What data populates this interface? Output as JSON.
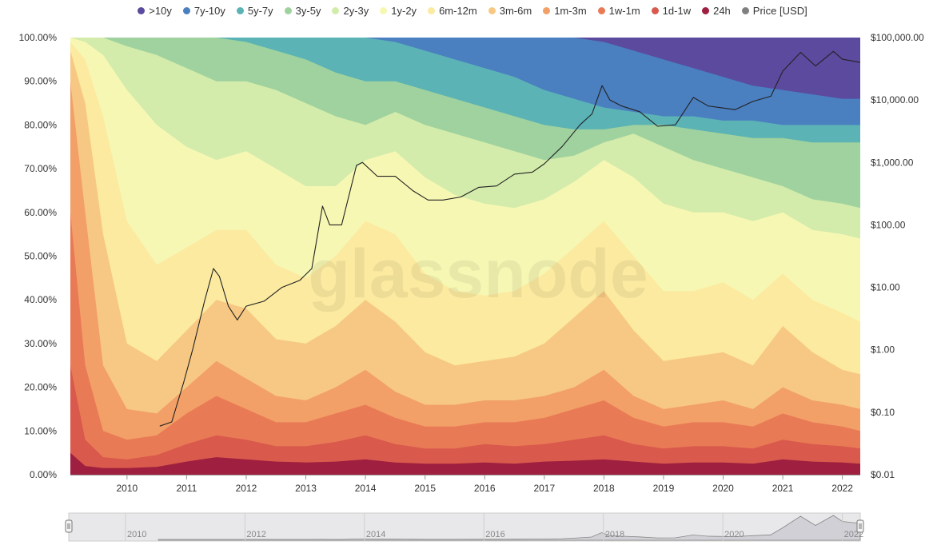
{
  "watermark": "glassnode",
  "chart_data": {
    "type": "area",
    "stacked": true,
    "y_left": {
      "ticks": [
        "0.00%",
        "10.00%",
        "20.00%",
        "30.00%",
        "40.00%",
        "50.00%",
        "60.00%",
        "70.00%",
        "80.00%",
        "90.00%",
        "100.00%"
      ],
      "range": [
        0,
        100
      ]
    },
    "y_right": {
      "ticks": [
        "$0.01",
        "$0.10",
        "$1.00",
        "$10.00",
        "$100.00",
        "$1,000.00",
        "$10,000.00",
        "$100,000.00"
      ],
      "scale": "log",
      "range": [
        0.01,
        100000
      ]
    },
    "x": {
      "range": [
        2009.05,
        2022.3
      ],
      "ticks": [
        "2010",
        "2011",
        "2012",
        "2013",
        "2014",
        "2015",
        "2016",
        "2017",
        "2018",
        "2019",
        "2020",
        "2021",
        "2022"
      ],
      "tick_values": [
        2010,
        2011,
        2012,
        2013,
        2014,
        2015,
        2016,
        2017,
        2018,
        2019,
        2020,
        2021,
        2022
      ]
    },
    "series_names": [
      ">10y",
      "7y-10y",
      "5y-7y",
      "3y-5y",
      "2y-3y",
      "1y-2y",
      "6m-12m",
      "3m-6m",
      "1m-3m",
      "1w-1m",
      "1d-1w",
      "24h",
      "Price [USD]"
    ],
    "series_colors": [
      "#5b4a9e",
      "#4a7fc0",
      "#5bb3b5",
      "#9fd29e",
      "#d3ecab",
      "#f7f7b4",
      "#fbeaa0",
      "#f7c883",
      "#f2a067",
      "#e97a56",
      "#d9594c",
      "#9e1f3f",
      "#808080"
    ],
    "boundaries": {
      "x": [
        2009.05,
        2009.3,
        2009.6,
        2010.0,
        2010.5,
        2011.0,
        2011.5,
        2012.0,
        2012.5,
        2013.0,
        2013.5,
        2014.0,
        2014.5,
        2015.0,
        2015.5,
        2016.0,
        2016.5,
        2017.0,
        2017.5,
        2018.0,
        2018.5,
        2019.0,
        2019.5,
        2020.0,
        2020.5,
        2021.0,
        2021.5,
        2022.0,
        2022.3
      ],
      "cumulative_pct": [
        [
          0.5,
          0.5,
          0.5,
          0.4,
          0.4,
          0.5,
          1.0,
          0.8,
          0.6,
          0.5,
          0.6,
          0.8,
          0.6,
          0.5,
          0.5,
          0.5,
          0.5,
          0.6,
          0.6,
          0.8,
          0.6,
          0.5,
          0.6,
          0.6,
          0.5,
          0.8,
          0.6,
          0.6,
          0.5
        ],
        [
          5,
          2,
          1.5,
          1.5,
          1.8,
          3,
          4,
          3.5,
          3,
          2.8,
          3,
          3.5,
          2.8,
          2.5,
          2.5,
          2.8,
          2.5,
          3,
          3.2,
          3.5,
          3,
          2.5,
          2.8,
          2.8,
          2.5,
          3.5,
          3,
          2.8,
          2.5
        ],
        [
          25,
          8,
          4,
          3.5,
          4.5,
          7,
          9,
          8,
          6.5,
          6.5,
          7.5,
          9,
          7,
          6,
          6,
          7,
          6.5,
          7,
          8,
          9,
          7,
          6,
          6.5,
          6.5,
          6,
          8,
          7,
          6.5,
          6
        ],
        [
          60,
          25,
          10,
          8,
          9,
          14,
          18,
          15,
          12,
          12,
          14,
          16,
          13,
          11,
          11,
          12,
          12,
          13,
          15,
          17,
          13,
          11,
          12,
          12,
          11,
          14,
          12,
          11,
          10
        ],
        [
          90,
          60,
          25,
          15,
          14,
          20,
          26,
          22,
          18,
          17,
          20,
          24,
          19,
          16,
          16,
          17,
          17,
          18,
          20,
          24,
          18,
          15,
          16,
          17,
          15,
          20,
          17,
          16,
          15
        ],
        [
          97,
          85,
          55,
          30,
          26,
          33,
          40,
          38,
          31,
          30,
          34,
          40,
          35,
          28,
          25,
          26,
          27,
          30,
          36,
          42,
          33,
          26,
          27,
          28,
          25,
          34,
          28,
          24,
          23
        ],
        [
          99,
          95,
          82,
          58,
          48,
          52,
          56,
          56,
          48,
          45,
          50,
          58,
          55,
          46,
          42,
          41,
          42,
          46,
          52,
          58,
          50,
          42,
          42,
          44,
          40,
          46,
          40,
          37,
          35
        ],
        [
          100,
          99,
          96,
          88,
          80,
          75,
          72,
          74,
          70,
          66,
          66,
          72,
          74,
          68,
          64,
          62,
          61,
          63,
          67,
          72,
          68,
          62,
          60,
          60,
          58,
          60,
          56,
          55,
          54
        ],
        [
          100,
          100,
          100,
          98,
          96,
          93,
          90,
          90,
          88,
          85,
          82,
          80,
          83,
          80,
          78,
          76,
          74,
          72,
          73,
          76,
          78,
          75,
          72,
          70,
          68,
          66,
          63,
          62,
          61
        ],
        [
          100,
          100,
          100,
          100,
          100,
          100,
          100,
          99,
          97,
          95,
          92,
          90,
          90,
          88,
          86,
          84,
          82,
          80,
          79,
          79,
          80,
          80,
          79,
          78,
          77,
          77,
          76,
          76,
          76
        ],
        [
          100,
          100,
          100,
          100,
          100,
          100,
          100,
          100,
          100,
          100,
          100,
          100,
          99,
          97,
          95,
          93,
          91,
          88,
          86,
          84,
          83,
          82,
          82,
          81,
          81,
          80,
          80,
          80,
          80
        ],
        [
          100,
          100,
          100,
          100,
          100,
          100,
          100,
          100,
          100,
          100,
          100,
          100,
          100,
          100,
          100,
          100,
          100,
          100,
          100,
          99,
          97,
          95,
          93,
          91,
          89,
          88,
          87,
          86,
          86
        ]
      ]
    },
    "price": {
      "x": [
        2010.55,
        2010.75,
        2010.95,
        2011.1,
        2011.3,
        2011.45,
        2011.55,
        2011.7,
        2011.85,
        2012.0,
        2012.3,
        2012.6,
        2012.9,
        2013.1,
        2013.28,
        2013.4,
        2013.6,
        2013.85,
        2013.95,
        2014.2,
        2014.5,
        2014.8,
        2015.05,
        2015.3,
        2015.6,
        2015.9,
        2016.2,
        2016.5,
        2016.8,
        2017.0,
        2017.3,
        2017.6,
        2017.8,
        2017.97,
        2018.1,
        2018.3,
        2018.6,
        2018.9,
        2019.2,
        2019.5,
        2019.75,
        2020.2,
        2020.5,
        2020.8,
        2021.0,
        2021.3,
        2021.55,
        2021.85,
        2022.0,
        2022.3
      ],
      "usd": [
        0.06,
        0.07,
        0.3,
        1,
        6,
        20,
        15,
        5,
        3,
        5,
        6,
        10,
        13,
        20,
        200,
        100,
        100,
        900,
        1000,
        600,
        600,
        350,
        250,
        250,
        280,
        400,
        420,
        650,
        700,
        950,
        1800,
        4000,
        6000,
        17000,
        10000,
        8000,
        6500,
        3800,
        4000,
        11000,
        8000,
        7000,
        9500,
        11500,
        29000,
        58000,
        35000,
        60000,
        45000,
        40000
      ]
    },
    "navigator": {
      "ticks": [
        "2010",
        "2012",
        "2014",
        "2016",
        "2018",
        "2020",
        "2022"
      ],
      "tick_values": [
        2010,
        2012,
        2014,
        2016,
        2018,
        2020,
        2022
      ]
    }
  }
}
